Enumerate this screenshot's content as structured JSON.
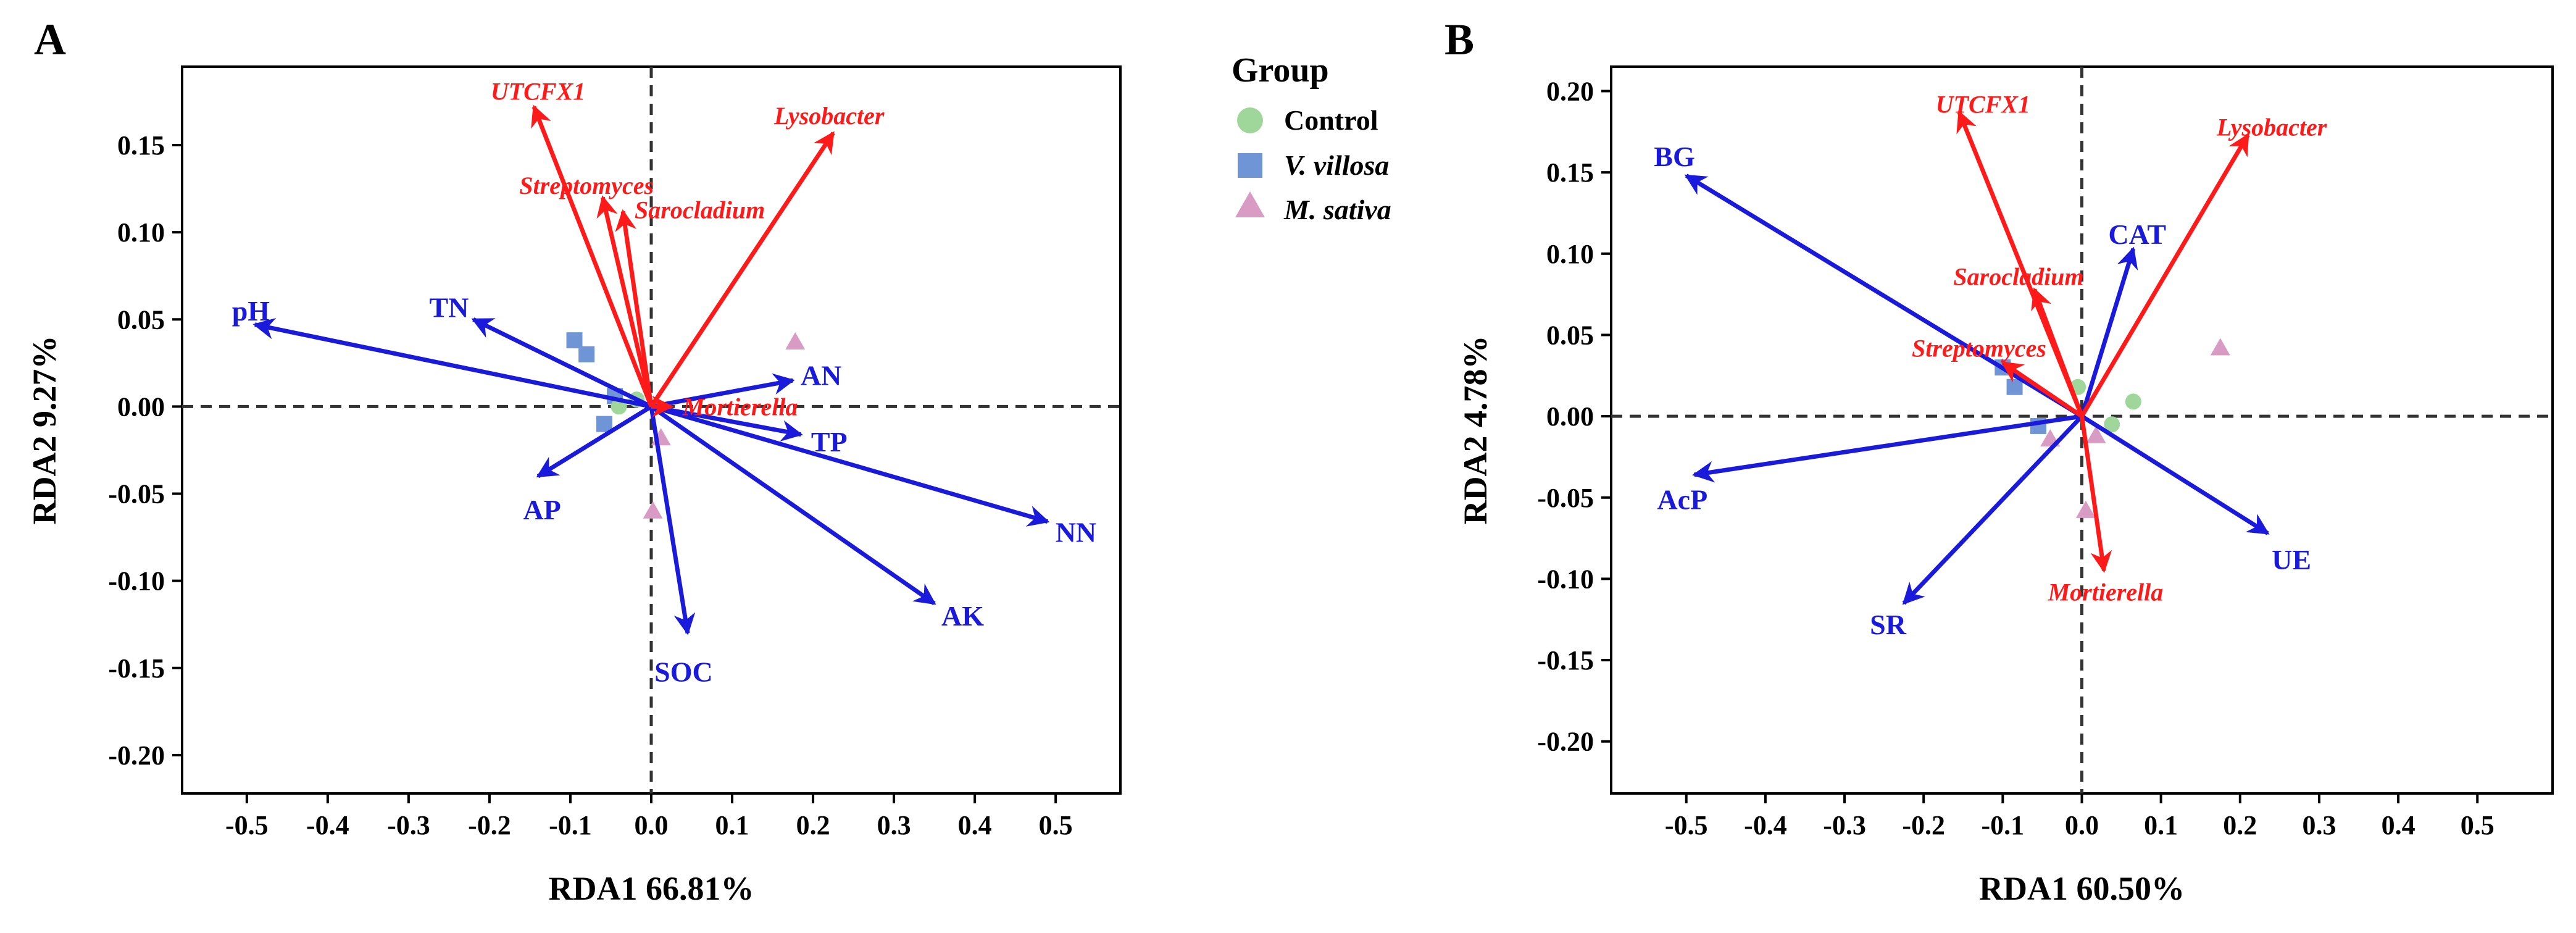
{
  "legend": {
    "title": "Group",
    "items": [
      {
        "label": "Control",
        "shape": "circle",
        "color": "#9fd79a"
      },
      {
        "label": "V. villosa",
        "shape": "square",
        "color": "#6f95d6",
        "italic": true
      },
      {
        "label": "M. sativa",
        "shape": "triangle",
        "color": "#d89bc4",
        "italic": true
      }
    ]
  },
  "colors": {
    "environment": "#1a1adc",
    "taxa": "#ff1a1a",
    "axes": "#000000",
    "zero_line": "#333333"
  },
  "chart_data": [
    {
      "type": "scatter",
      "panel_label": "A",
      "title": "",
      "xlabel": "RDA1  66.81%",
      "ylabel": "RDA2  9.27%",
      "xlim": [
        -0.58,
        0.58
      ],
      "ylim": [
        -0.222,
        0.195
      ],
      "xticks": [
        -0.5,
        -0.4,
        -0.3,
        -0.2,
        -0.1,
        0.0,
        0.1,
        0.2,
        0.3,
        0.4,
        0.5
      ],
      "xtick_labels": [
        "-0.5",
        "-0.4",
        "-0.3",
        "-0.2",
        "-0.1",
        "0.0",
        "0.1",
        "0.2",
        "0.3",
        "0.4",
        "0.5"
      ],
      "yticks": [
        0.15,
        0.1,
        0.05,
        0.0,
        -0.05,
        -0.1,
        -0.15,
        -0.2
      ],
      "ytick_labels": [
        "0.15",
        "0.10",
        "0.05",
        "0.00",
        "-0.05",
        "-0.10",
        "-0.15",
        "-0.20"
      ],
      "env_arrows": [
        {
          "label": "pH",
          "x": -0.49,
          "y": 0.047,
          "lx": -0.495,
          "ly": 0.055
        },
        {
          "label": "TN",
          "x": -0.22,
          "y": 0.05,
          "lx": -0.25,
          "ly": 0.057
        },
        {
          "label": "AN",
          "x": 0.175,
          "y": 0.015,
          "lx": 0.21,
          "ly": 0.018
        },
        {
          "label": "TP",
          "x": 0.185,
          "y": -0.016,
          "lx": 0.22,
          "ly": -0.02
        },
        {
          "label": "NN",
          "x": 0.49,
          "y": -0.066,
          "lx": 0.525,
          "ly": -0.072
        },
        {
          "label": "AK",
          "x": 0.35,
          "y": -0.113,
          "lx": 0.385,
          "ly": -0.12
        },
        {
          "label": "SOC",
          "x": 0.045,
          "y": -0.13,
          "lx": 0.04,
          "ly": -0.152
        },
        {
          "label": "AP",
          "x": -0.14,
          "y": -0.04,
          "lx": -0.135,
          "ly": -0.059
        }
      ],
      "taxa_arrows": [
        {
          "label": "UTCFX1",
          "x": -0.145,
          "y": 0.172,
          "lx": -0.14,
          "ly": 0.181
        },
        {
          "label": "Lysobacter",
          "x": 0.225,
          "y": 0.157,
          "lx": 0.22,
          "ly": 0.167
        },
        {
          "label": "Streptomyces",
          "x": -0.06,
          "y": 0.12,
          "lx": -0.08,
          "ly": 0.127
        },
        {
          "label": "Sarocladium",
          "x": -0.035,
          "y": 0.112,
          "lx": 0.06,
          "ly": 0.113
        },
        {
          "label": "Mortierella",
          "x": 0.025,
          "y": 0.0,
          "lx": 0.11,
          "ly": 0.0
        }
      ],
      "points": [
        {
          "group": "V. villosa",
          "x": -0.095,
          "y": 0.038
        },
        {
          "group": "V. villosa",
          "x": -0.08,
          "y": 0.03
        },
        {
          "group": "V. villosa",
          "x": -0.045,
          "y": 0.006
        },
        {
          "group": "V. villosa",
          "x": -0.058,
          "y": -0.01
        },
        {
          "group": "Control",
          "x": -0.018,
          "y": 0.004
        },
        {
          "group": "Control",
          "x": -0.04,
          "y": 0.0
        },
        {
          "group": "M. sativa",
          "x": 0.178,
          "y": 0.037
        },
        {
          "group": "M. sativa",
          "x": 0.012,
          "y": -0.018
        },
        {
          "group": "M. sativa",
          "x": 0.002,
          "y": -0.06
        }
      ]
    },
    {
      "type": "scatter",
      "panel_label": "B",
      "title": "",
      "xlabel": "RDA1  60.50%",
      "ylabel": "RDA2  4.78%",
      "xlim": [
        -0.595,
        0.595
      ],
      "ylim": [
        -0.232,
        0.215
      ],
      "xticks": [
        -0.5,
        -0.4,
        -0.3,
        -0.2,
        -0.1,
        0.0,
        0.1,
        0.2,
        0.3,
        0.4,
        0.5
      ],
      "xtick_labels": [
        "-0.5",
        "-0.4",
        "-0.3",
        "-0.2",
        "-0.1",
        "0.0",
        "0.1",
        "0.2",
        "0.3",
        "0.4",
        "0.5"
      ],
      "yticks": [
        0.2,
        0.15,
        0.1,
        0.05,
        0.0,
        -0.05,
        -0.1,
        -0.15,
        -0.2
      ],
      "ytick_labels": [
        "0.20",
        "0.15",
        "0.10",
        "0.05",
        "0.00",
        "-0.05",
        "-0.10",
        "-0.15",
        "-0.20"
      ],
      "env_arrows": [
        {
          "label": "BG",
          "x": -0.5,
          "y": 0.148,
          "lx": -0.515,
          "ly": 0.16
        },
        {
          "label": "CAT",
          "x": 0.065,
          "y": 0.103,
          "lx": 0.07,
          "ly": 0.112
        },
        {
          "label": "AcP",
          "x": -0.49,
          "y": -0.036,
          "lx": -0.505,
          "ly": -0.051
        },
        {
          "label": "SR",
          "x": -0.225,
          "y": -0.115,
          "lx": -0.245,
          "ly": -0.128
        },
        {
          "label": "UE",
          "x": 0.235,
          "y": -0.072,
          "lx": 0.265,
          "ly": -0.088
        }
      ],
      "taxa_arrows": [
        {
          "label": "UTCFX1",
          "x": -0.155,
          "y": 0.187,
          "lx": -0.125,
          "ly": 0.192
        },
        {
          "label": "Lysobacter",
          "x": 0.21,
          "y": 0.173,
          "lx": 0.24,
          "ly": 0.178
        },
        {
          "label": "Sarocladium",
          "x": -0.06,
          "y": 0.078,
          "lx": -0.08,
          "ly": 0.086
        },
        {
          "label": "Streptomyces",
          "x": -0.1,
          "y": 0.033,
          "lx": -0.13,
          "ly": 0.042
        },
        {
          "label": "Mortierella",
          "x": 0.028,
          "y": -0.095,
          "lx": 0.03,
          "ly": -0.108
        }
      ],
      "points": [
        {
          "group": "V. villosa",
          "x": -0.1,
          "y": 0.03
        },
        {
          "group": "V. villosa",
          "x": -0.085,
          "y": 0.018
        },
        {
          "group": "V. villosa",
          "x": -0.055,
          "y": -0.006
        },
        {
          "group": "Control",
          "x": 0.065,
          "y": 0.009
        },
        {
          "group": "Control",
          "x": 0.038,
          "y": -0.005
        },
        {
          "group": "Control",
          "x": -0.005,
          "y": 0.018
        },
        {
          "group": "M. sativa",
          "x": 0.175,
          "y": 0.042
        },
        {
          "group": "M. sativa",
          "x": -0.04,
          "y": -0.014
        },
        {
          "group": "M. sativa",
          "x": 0.018,
          "y": -0.012
        },
        {
          "group": "M. sativa",
          "x": 0.005,
          "y": -0.058
        }
      ]
    }
  ]
}
